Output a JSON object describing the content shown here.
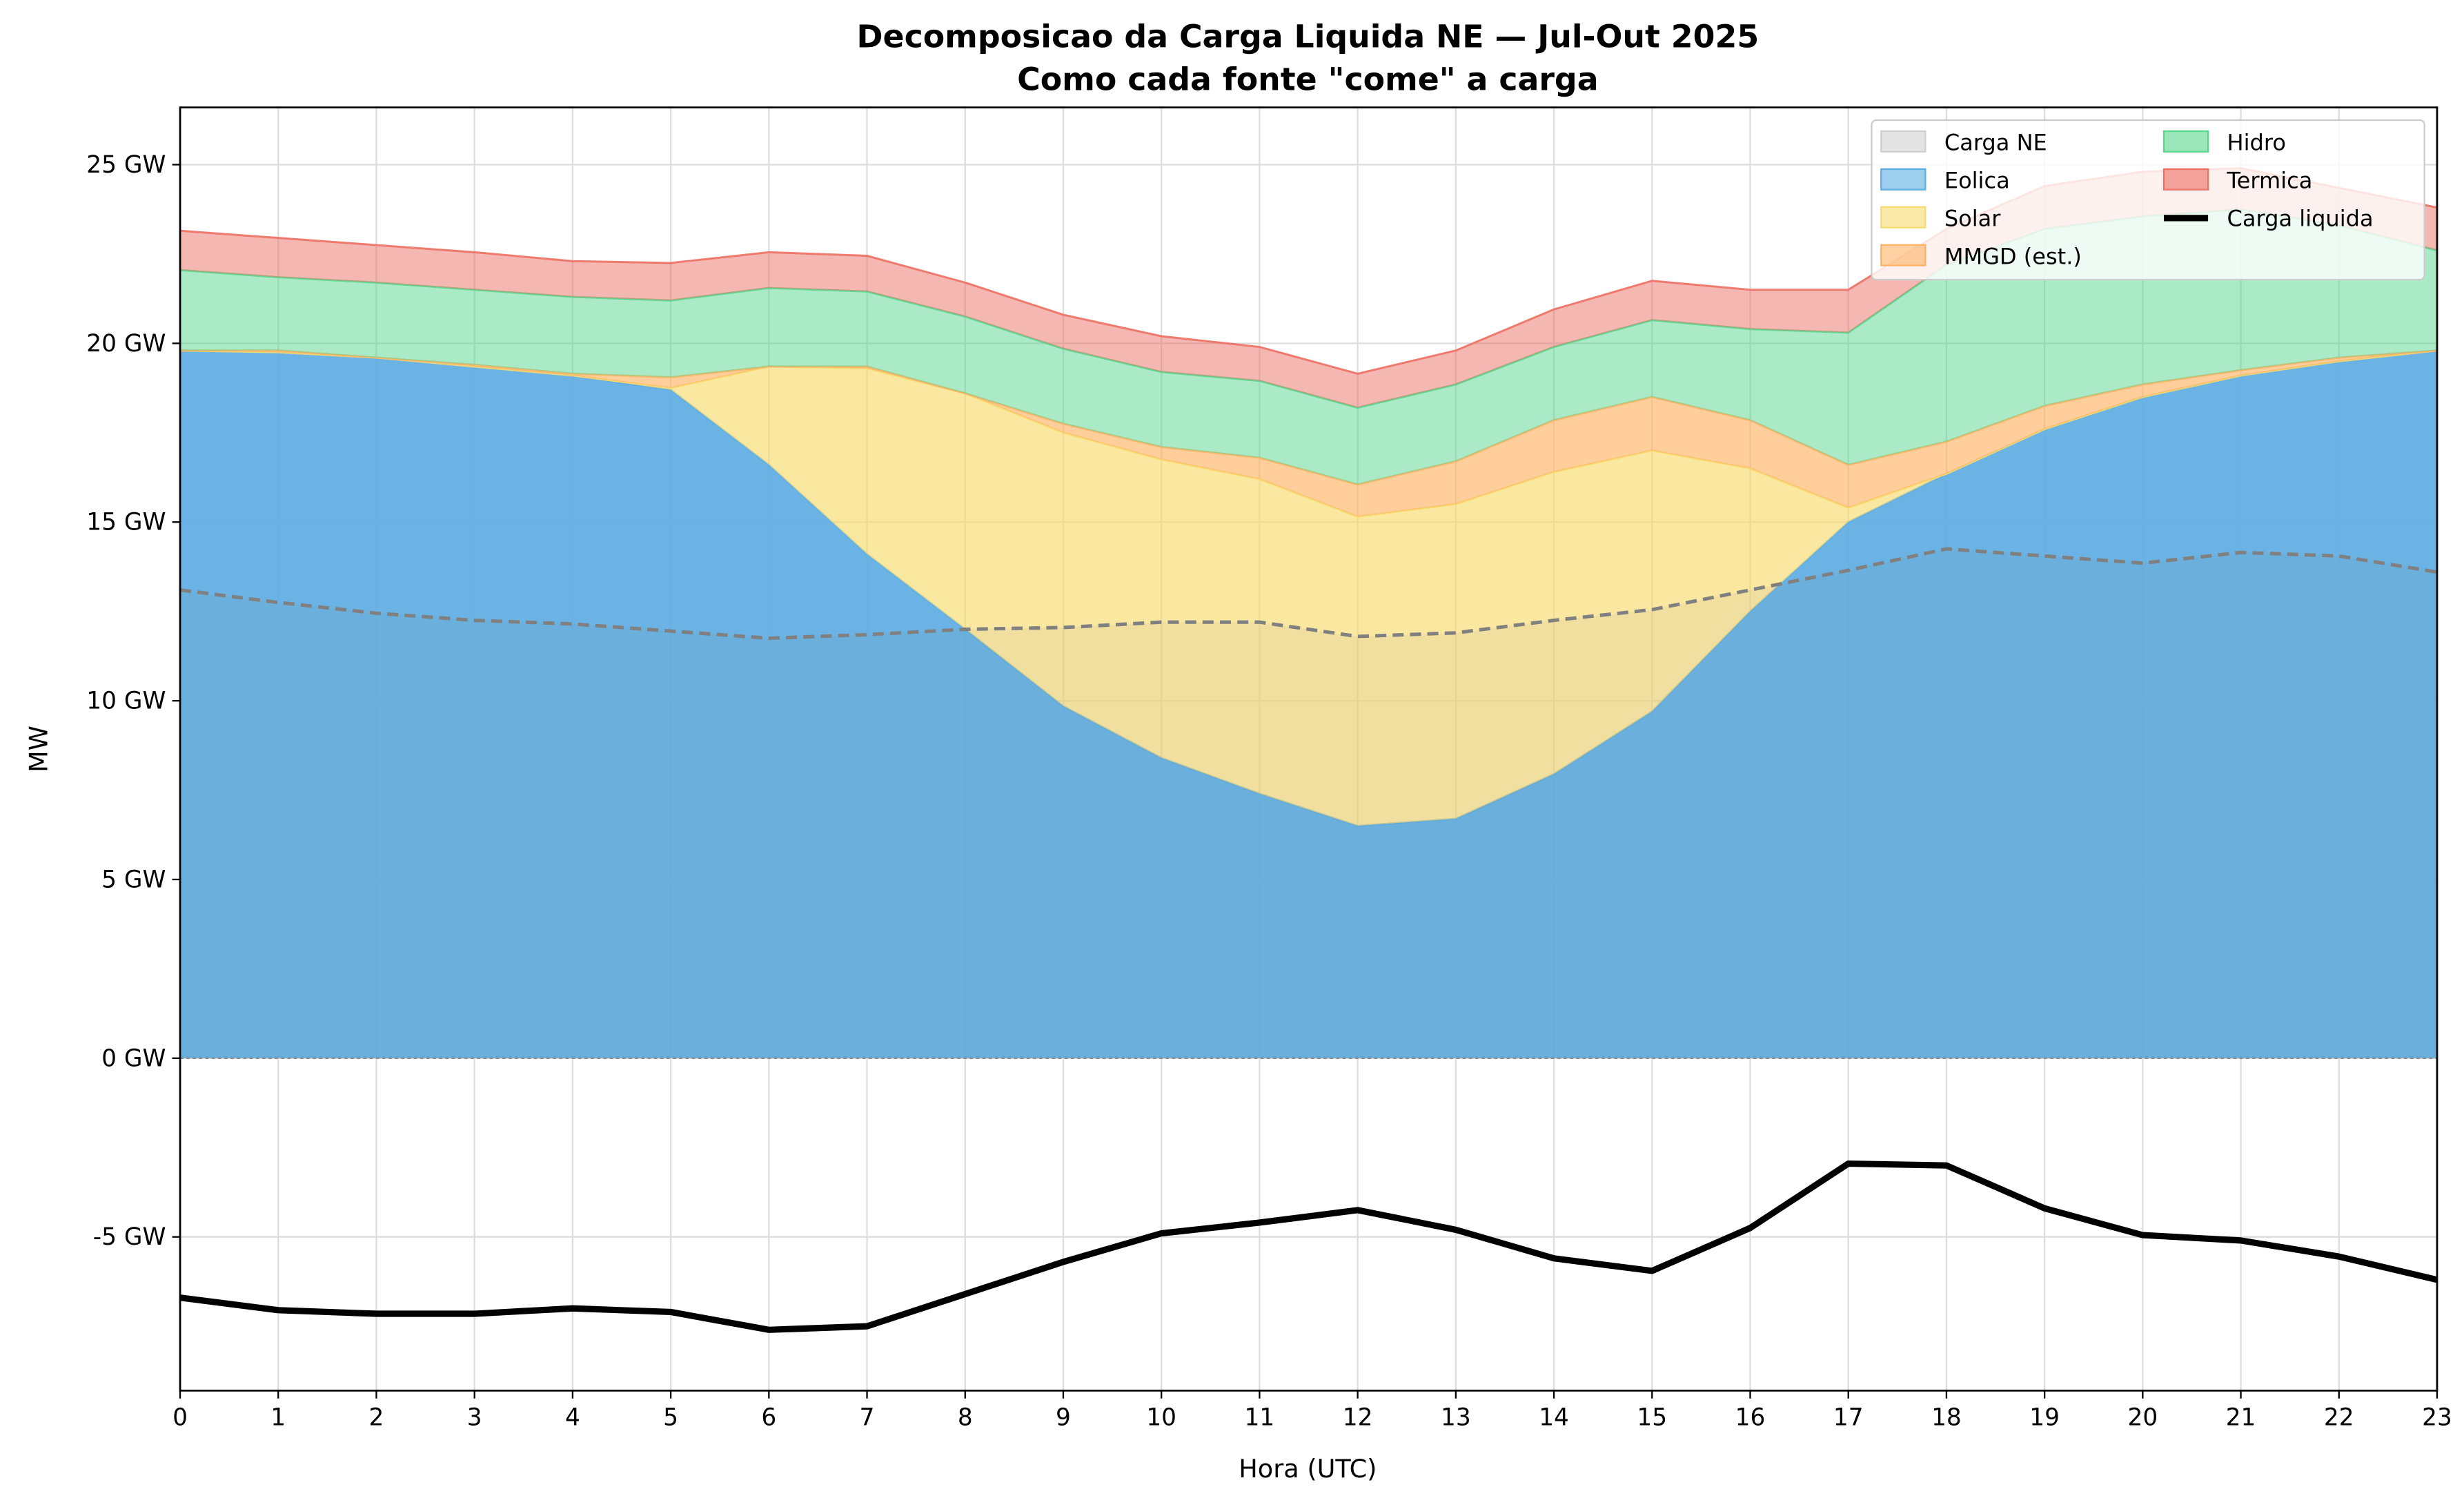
{
  "chart_data": {
    "type": "area",
    "title": "Decomposicao da Carga Liquida NE — Jul-Out 2025",
    "subtitle": "Como cada fonte \"come\" a carga",
    "xlabel": "Hora (UTC)",
    "ylabel": "MW",
    "x": [
      0,
      1,
      2,
      3,
      4,
      5,
      6,
      7,
      8,
      9,
      10,
      11,
      12,
      13,
      14,
      15,
      16,
      17,
      18,
      19,
      20,
      21,
      22,
      23
    ],
    "xlim": [
      0,
      23
    ],
    "ylim": [
      -9.3,
      26.6
    ],
    "y_unit": "GW",
    "yticks": [
      -5,
      0,
      5,
      10,
      15,
      20,
      25
    ],
    "ytick_labels": [
      "-5 GW",
      "0 GW",
      "5 GW",
      "10 GW",
      "15 GW",
      "20 GW",
      "25 GW"
    ],
    "grid": true,
    "legend_placement": "top-right",
    "stacked_series": [
      {
        "name": "Eolica",
        "color": "#5dade2",
        "values": [
          19.8,
          19.75,
          19.6,
          19.35,
          19.1,
          18.7,
          16.6,
          14.1,
          12.0,
          9.85,
          8.4,
          7.4,
          6.5,
          6.7,
          7.95,
          9.7,
          12.5,
          15.0,
          16.35,
          17.6,
          18.5,
          19.1,
          19.5,
          19.8
        ]
      },
      {
        "name": "Solar",
        "color": "#f7dc6f",
        "values": [
          0,
          0,
          0,
          0,
          0,
          0.05,
          2.75,
          5.2,
          6.6,
          7.65,
          8.35,
          8.8,
          8.65,
          8.8,
          8.45,
          7.3,
          4.0,
          0.4,
          0,
          0,
          0,
          0,
          0,
          0
        ]
      },
      {
        "name": "MMGD (est.)",
        "color": "#ffb366",
        "values": [
          0,
          0.05,
          0,
          0.05,
          0.05,
          0.3,
          0,
          0.05,
          0,
          0.25,
          0.35,
          0.6,
          0.9,
          1.2,
          1.45,
          1.5,
          1.35,
          1.2,
          0.9,
          0.65,
          0.35,
          0.15,
          0.1,
          0
        ]
      },
      {
        "name": "Hidro",
        "color": "#58d68d",
        "values": [
          2.25,
          2.05,
          2.1,
          2.1,
          2.15,
          2.15,
          2.2,
          2.1,
          2.15,
          2.1,
          2.1,
          2.15,
          2.15,
          2.15,
          2.05,
          2.15,
          2.55,
          3.7,
          4.95,
          4.95,
          4.7,
          4.5,
          3.7,
          2.8
        ]
      },
      {
        "name": "Termica",
        "color": "#ec7063",
        "values": [
          1.1,
          1.1,
          1.05,
          1.05,
          1.0,
          1.05,
          1.0,
          1.0,
          0.95,
          0.95,
          1.0,
          0.95,
          0.95,
          0.95,
          1.05,
          1.1,
          1.1,
          1.2,
          1.0,
          1.2,
          1.25,
          1.15,
          1.05,
          1.2
        ]
      }
    ],
    "carga_ne": {
      "name": "Carga NE",
      "color": "#808080",
      "values": [
        13.1,
        12.75,
        12.45,
        12.25,
        12.15,
        11.95,
        11.75,
        11.85,
        12.0,
        12.05,
        12.2,
        12.2,
        11.8,
        11.9,
        12.25,
        12.55,
        13.1,
        13.65,
        14.25,
        14.05,
        13.85,
        14.15,
        14.05,
        13.6
      ]
    },
    "carga_liquida": {
      "name": "Carga liquida",
      "color": "#000000",
      "values": [
        -6.7,
        -7.05,
        -7.15,
        -7.15,
        -7.0,
        -7.1,
        -7.6,
        -7.5,
        -6.6,
        -5.7,
        -4.9,
        -4.6,
        -4.25,
        -4.8,
        -5.6,
        -5.95,
        -4.75,
        -2.95,
        -3.0,
        -4.2,
        -4.95,
        -5.1,
        -5.55,
        -6.2
      ]
    }
  }
}
